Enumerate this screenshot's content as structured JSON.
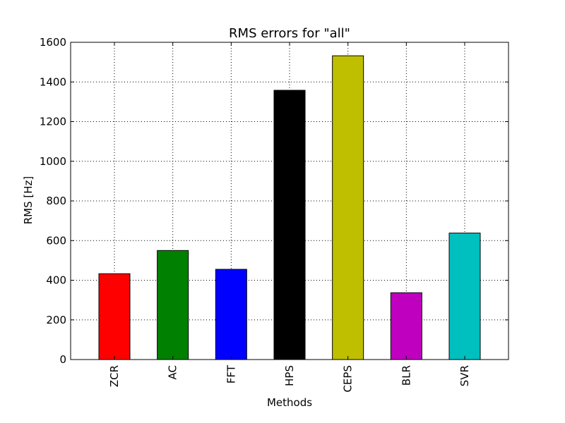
{
  "chart_data": {
    "type": "bar",
    "title": "RMS errors for \"all\"",
    "xlabel": "Methods",
    "ylabel": "RMS [Hz]",
    "categories": [
      "ZCR",
      "AC",
      "FFT",
      "HPS",
      "CEPS",
      "BLR",
      "SVR"
    ],
    "values": [
      433,
      550,
      455,
      1358,
      1532,
      337,
      638
    ],
    "colors": [
      "#ff0000",
      "#008000",
      "#0000ff",
      "#000000",
      "#bfbf00",
      "#bf00bf",
      "#00bfbf"
    ],
    "ylim": [
      0,
      1600
    ],
    "yticks": [
      0,
      200,
      400,
      600,
      800,
      1000,
      1200,
      1400,
      1600
    ],
    "grid": true,
    "grid_style": "dotted"
  }
}
